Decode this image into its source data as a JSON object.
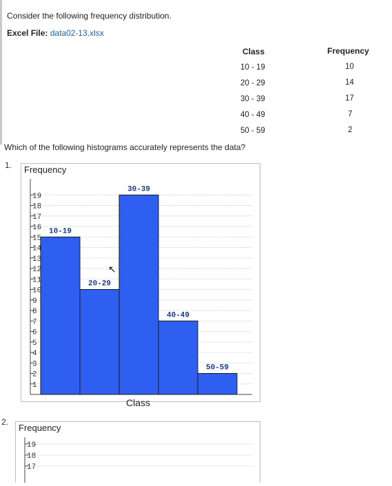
{
  "question": {
    "intro": "Consider the following frequency distribution.",
    "excel_label": "Excel File:",
    "excel_file": "data02-13.xlsx",
    "prompt": "Which of the following histograms accurately represents the data?"
  },
  "table": {
    "class_header": "Class",
    "freq_header": "Frequency",
    "rows": [
      {
        "class": "10 - 19",
        "freq": "10"
      },
      {
        "class": "20 - 29",
        "freq": "14"
      },
      {
        "class": "30 - 39",
        "freq": "17"
      },
      {
        "class": "40 - 49",
        "freq": "7"
      },
      {
        "class": "50 - 59",
        "freq": "2"
      }
    ]
  },
  "options": [
    {
      "number": "1.",
      "ylabel": "Frequency",
      "xlabel": "Class",
      "yticks": [
        "1",
        "2",
        "3",
        "4",
        "5",
        "6",
        "7",
        "8",
        "9",
        "10",
        "11",
        "12",
        "13",
        "14",
        "15",
        "16",
        "17",
        "18",
        "19"
      ]
    },
    {
      "number": "2.",
      "ylabel": "Frequency",
      "yticks": [
        "17",
        "18",
        "19"
      ]
    }
  ],
  "chart_data": [
    {
      "type": "bar",
      "categories": [
        "10-19",
        "20-29",
        "30-39",
        "40-49",
        "50-59"
      ],
      "values": [
        15,
        10,
        19,
        7,
        2
      ],
      "ylabel": "Frequency",
      "xlabel": "Class",
      "ylim": [
        0,
        20
      ],
      "grid": true,
      "bar_color": "#2f5ff0"
    },
    {
      "type": "bar",
      "ylabel": "Frequency",
      "ylim": [
        0,
        20
      ],
      "grid": true
    }
  ],
  "colors": {
    "bar": "#2f5ff0",
    "bar_stroke": "#1a1a1a",
    "grid": "#cfcfcf",
    "link": "#1f5fae"
  }
}
